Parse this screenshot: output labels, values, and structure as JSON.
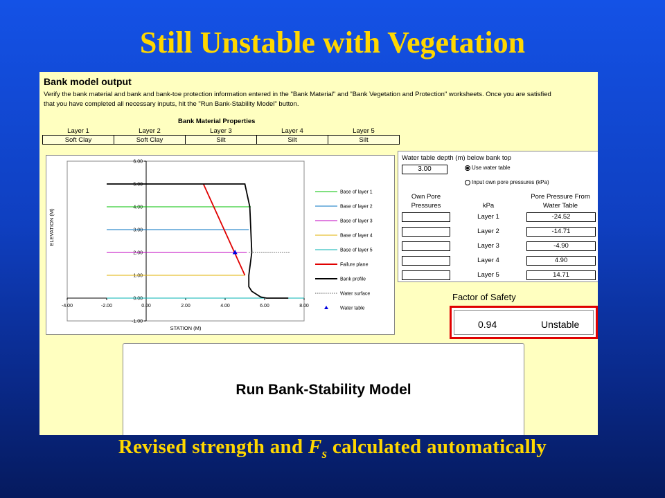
{
  "slide": {
    "title": "Still Unstable with Vegetation",
    "caption_pre": "Revised strength and ",
    "caption_var": "F",
    "caption_sub": "s",
    "caption_post": " calculated automatically"
  },
  "sheet": {
    "heading": "Bank model output",
    "instructions": "Verify the bank material and bank and bank-toe protection information entered in the \"Bank Material\" and \"Bank Vegetation and Protection\" worksheets. Once you are satisfied that you have completed all necessary inputs, hit the \"Run Bank-Stability Model\" button.",
    "properties_title": "Bank Material Properties",
    "layers": [
      {
        "label": "Layer 1",
        "material": "Soft Clay"
      },
      {
        "label": "Layer 2",
        "material": "Soft Clay"
      },
      {
        "label": "Layer 3",
        "material": "Silt"
      },
      {
        "label": "Layer 4",
        "material": "Silt"
      },
      {
        "label": "Layer 5",
        "material": "Silt"
      }
    ]
  },
  "chart_data": {
    "type": "line",
    "xlabel": "STATION (M)",
    "ylabel": "ELEVATION (M)",
    "xlim": [
      -4,
      8
    ],
    "ylim": [
      -1,
      6
    ],
    "x_ticks": [
      "-4.00",
      "-2.00",
      "0.00",
      "2.00",
      "4.00",
      "6.00",
      "8.00"
    ],
    "y_ticks": [
      "-1.00",
      "0.00",
      "1.00",
      "2.00",
      "3.00",
      "4.00",
      "5.00",
      "6.00"
    ],
    "series": [
      {
        "name": "Base of layer 1",
        "color": "#00c000",
        "x": [
          -2,
          5.3
        ],
        "y": [
          4,
          4
        ]
      },
      {
        "name": "Base of layer 2",
        "color": "#0070c0",
        "x": [
          -2,
          5.2
        ],
        "y": [
          3,
          3
        ]
      },
      {
        "name": "Base of layer 3",
        "color": "#c000c0",
        "x": [
          -2,
          5.1
        ],
        "y": [
          2,
          2
        ]
      },
      {
        "name": "Base of layer 4",
        "color": "#e0b000",
        "x": [
          -2,
          5.0
        ],
        "y": [
          1,
          1
        ]
      },
      {
        "name": "Base of layer 5",
        "color": "#00b0b0",
        "x": [
          -2,
          8
        ],
        "y": [
          0,
          0
        ]
      },
      {
        "name": "Failure plane",
        "color": "#e00000",
        "x": [
          2.9,
          5.0
        ],
        "y": [
          5.0,
          1.0
        ]
      },
      {
        "name": "Bank profile",
        "color": "#000000",
        "x": [
          -2,
          5.0,
          5.25,
          5.35,
          5.2,
          5.2,
          5.35,
          5.8,
          6.1,
          7.2
        ],
        "y": [
          5.0,
          5.0,
          4.0,
          2.0,
          1.0,
          0.5,
          0.3,
          0.05,
          0.0,
          0.0
        ]
      },
      {
        "name": "Water surface",
        "color": "#555555",
        "x": [
          5.2,
          7.3
        ],
        "y": [
          2.0,
          2.0
        ]
      },
      {
        "name": "Water table",
        "color": "#0000e0",
        "x": [
          4.5
        ],
        "y": [
          2.0
        ]
      }
    ],
    "legend": "right"
  },
  "water": {
    "label": "Water table depth (m) below bank top",
    "depth": "3.00",
    "option_use": "Use water table",
    "option_input": "Input own pore pressures (kPa)",
    "own_pore_label1": "Own Pore",
    "own_pore_label2": "Pressures",
    "kpa_label": "kPa",
    "from_wt_label1": "Pore Pressure From",
    "from_wt_label2": "Water Table",
    "rows": [
      {
        "layer": "Layer 1",
        "value": "-24.52"
      },
      {
        "layer": "Layer 2",
        "value": "-14.71"
      },
      {
        "layer": "Layer 3",
        "value": "-4.90"
      },
      {
        "layer": "Layer 4",
        "value": "4.90"
      },
      {
        "layer": "Layer 5",
        "value": "14.71"
      }
    ]
  },
  "safety": {
    "label": "Factor of Safety",
    "value": "0.94",
    "status": "Unstable"
  },
  "run_button": {
    "label": "Run Bank-Stability Model"
  }
}
